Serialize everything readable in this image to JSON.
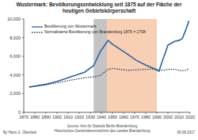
{
  "chart_data": {
    "type": "line",
    "title": "Wustermark: Bevölkerungsentwicklung seit 1875 auf der Fläche der heutigen Gebietskörperschaft",
    "x": [
      1875,
      1890,
      1900,
      1910,
      1925,
      1933,
      1939,
      1946,
      1950,
      1964,
      1971,
      1981,
      1985,
      1989,
      1990,
      1992,
      1995,
      1998,
      2000,
      2003,
      2006,
      2010,
      2013,
      2016,
      2019
    ],
    "series": [
      {
        "name": "Bevölkerung von Wustermark",
        "color": "#2a64a8",
        "line_style": "solid",
        "values": [
          2708,
          3000,
          3300,
          3700,
          4300,
          5000,
          6500,
          7700,
          7300,
          6200,
          5600,
          5000,
          4800,
          4600,
          4500,
          4400,
          5500,
          6500,
          7200,
          7400,
          7600,
          7700,
          7900,
          8800,
          9800
        ]
      },
      {
        "name": "Normalisierte Bevölkerung von Brandenburg 1875 = 2708",
        "color": "#1b3563",
        "line_style": "dotted",
        "values": [
          2708,
          2950,
          3150,
          3400,
          3700,
          3800,
          3950,
          4600,
          4700,
          4500,
          4550,
          4600,
          4650,
          4600,
          4600,
          4550,
          4500,
          4550,
          4600,
          4600,
          4600,
          4500,
          4450,
          4500,
          4650
        ]
      }
    ],
    "shaded_ranges": [
      {
        "from": 1933,
        "to": 1945,
        "color": "#c4c4c4"
      },
      {
        "from": 1945,
        "to": 1990,
        "color": "#f8cfb2"
      }
    ],
    "xlim": [
      1870,
      2020
    ],
    "xticks": [
      1870,
      1880,
      1890,
      1900,
      1910,
      1920,
      1930,
      1940,
      1950,
      1960,
      1970,
      1980,
      1990,
      2000,
      2010,
      2020
    ],
    "ylim": [
      0,
      10000
    ],
    "yticks": [
      0,
      {
        "value": 2000,
        "label": "2,000"
      },
      {
        "value": 4000,
        "label": "4,000"
      },
      {
        "value": 6000,
        "label": "6,000"
      },
      {
        "value": 8000,
        "label": "8,000"
      },
      {
        "value": 10000,
        "label": "10,000"
      }
    ],
    "grid": false,
    "legend": "top-left",
    "footer": {
      "author": "By Hans G. Oberlack",
      "sources": [
        "Source: Amt für Statistik Berlin-Brandenburg",
        "Historisches Gemeindeverzeichnis des Landes Brandenburg"
      ],
      "date": "06.08.2017"
    }
  }
}
